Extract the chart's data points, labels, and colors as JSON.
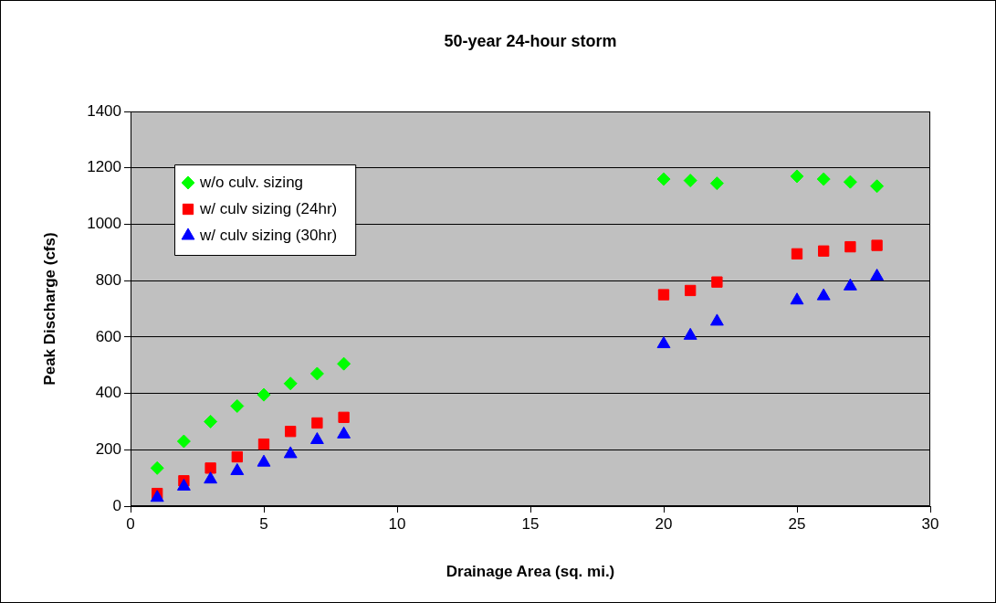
{
  "chart_data": {
    "type": "scatter",
    "title": "50-year 24-hour storm",
    "xlabel": "Drainage Area (sq. mi.)",
    "ylabel": "Peak Discharge (cfs)",
    "x": [
      1,
      2,
      3,
      4,
      5,
      6,
      7,
      8,
      20,
      21,
      22,
      25,
      26,
      27,
      28
    ],
    "series": [
      {
        "name": "w/o culv. sizing",
        "color": "#00ff00",
        "marker": "diamond",
        "values": [
          135,
          230,
          300,
          355,
          395,
          435,
          470,
          505,
          1160,
          1155,
          1145,
          1170,
          1160,
          1150,
          1135
        ]
      },
      {
        "name": "w/ culv sizing (24hr)",
        "color": "#ff0000",
        "marker": "square",
        "values": [
          45,
          90,
          135,
          175,
          220,
          265,
          295,
          315,
          750,
          765,
          795,
          895,
          905,
          920,
          925
        ]
      },
      {
        "name": "w/ culv sizing (30hr)",
        "color": "#0000ff",
        "marker": "triangle",
        "values": [
          30,
          70,
          95,
          125,
          155,
          185,
          235,
          255,
          575,
          605,
          655,
          730,
          745,
          780,
          815
        ]
      }
    ],
    "xlim": [
      0,
      30
    ],
    "xticks": [
      0,
      5,
      10,
      15,
      20,
      25,
      30
    ],
    "ylim": [
      0,
      1400
    ],
    "yticks": [
      0,
      200,
      400,
      600,
      800,
      1000,
      1200,
      1400
    ],
    "grid": "y",
    "legend": "top left"
  }
}
